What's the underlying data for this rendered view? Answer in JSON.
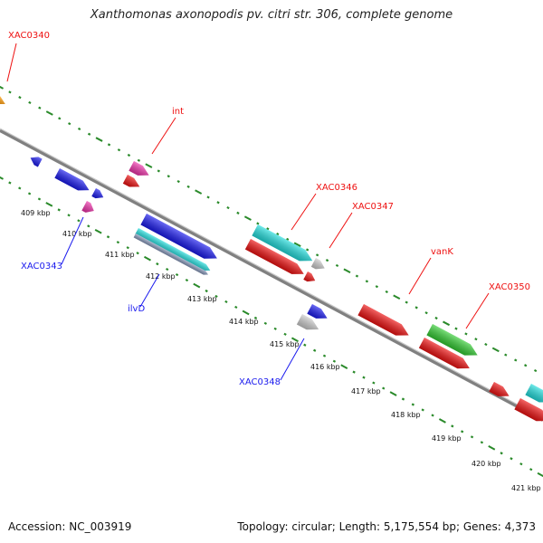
{
  "title": "Xanthomonas axonopodis pv. citri str. 306, complete genome",
  "footer": {
    "accession": "Accession: NC_003919",
    "topology": "Topology: circular; Length: 5,175,554 bp; Genes: 4,373"
  },
  "colors": {
    "red": "#ee1111",
    "blue": "#1a1aee",
    "cyan": "#22dddd",
    "magenta": "#ee33aa",
    "green": "#33cc33",
    "orange": "#ff9900",
    "gray": "#cccccc",
    "ruler_green": "#2a8a2a",
    "backbone": "#888888"
  },
  "ruler_ticks": [
    "409 kbp",
    "410 kbp",
    "411 kbp",
    "412 kbp",
    "413 kbp",
    "414 kbp",
    "415 kbp",
    "416 kbp",
    "417 kbp",
    "418 kbp",
    "419 kbp",
    "420 kbp",
    "421 kbp"
  ],
  "gene_labels": [
    {
      "text": "XAC0340",
      "strand": "forward"
    },
    {
      "text": "int",
      "strand": "forward"
    },
    {
      "text": "XAC0346",
      "strand": "forward"
    },
    {
      "text": "XAC0347",
      "strand": "forward"
    },
    {
      "text": "vanK",
      "strand": "forward"
    },
    {
      "text": "XAC0350",
      "strand": "forward"
    },
    {
      "text": "XAC0343",
      "strand": "reverse"
    },
    {
      "text": "ilvD",
      "strand": "reverse"
    },
    {
      "text": "XAC0348",
      "strand": "reverse"
    }
  ]
}
